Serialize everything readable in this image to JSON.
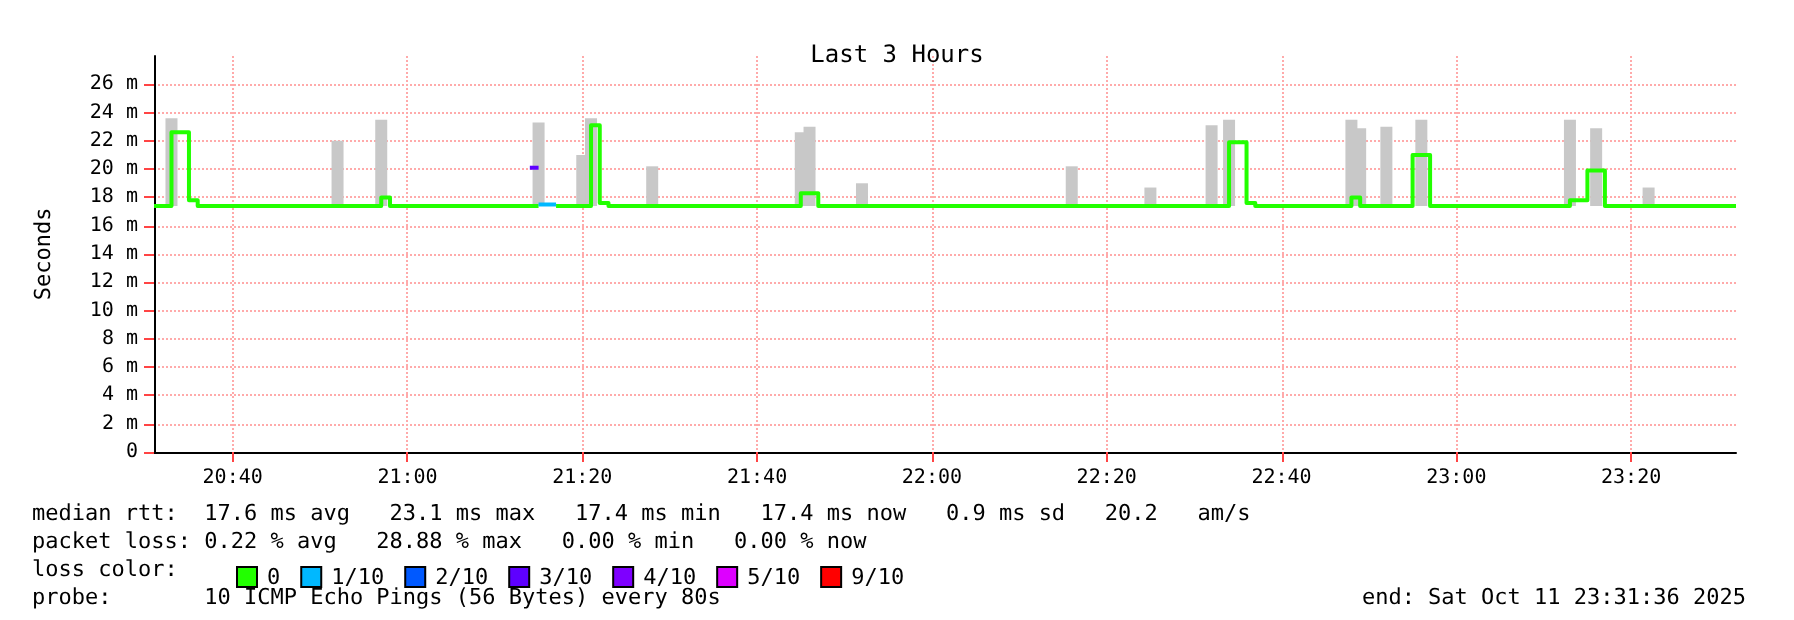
{
  "chart_data": {
    "type": "step",
    "title": "Last 3 Hours",
    "ylabel": "Seconds",
    "legend_title": "loss color:",
    "legend": "bottom left",
    "grid": true,
    "xlim": [
      "2025-10-11T20:31",
      "2025-10-11T23:32"
    ],
    "xticks": [
      {
        "value": "2025-10-11T20:40",
        "label": "20:40"
      },
      {
        "value": "2025-10-11T21:00",
        "label": "21:00"
      },
      {
        "value": "2025-10-11T21:20",
        "label": "21:20"
      },
      {
        "value": "2025-10-11T21:40",
        "label": "21:40"
      },
      {
        "value": "2025-10-11T22:00",
        "label": "22:00"
      },
      {
        "value": "2025-10-11T22:20",
        "label": "22:20"
      },
      {
        "value": "2025-10-11T22:40",
        "label": "22:40"
      },
      {
        "value": "2025-10-11T23:00",
        "label": "23:00"
      },
      {
        "value": "2025-10-11T23:20",
        "label": "23:20"
      }
    ],
    "ylim": [
      0,
      28
    ],
    "yticks": [
      0,
      {
        "value": 2,
        "label": "2 m"
      },
      {
        "value": 4,
        "label": "4 m"
      },
      {
        "value": 6,
        "label": "6 m"
      },
      {
        "value": 8,
        "label": "8 m"
      },
      {
        "value": 10,
        "label": "10 m"
      },
      {
        "value": 12,
        "label": "12 m"
      },
      {
        "value": 14,
        "label": "14 m"
      },
      {
        "value": 16,
        "label": "16 m"
      },
      {
        "value": 18,
        "label": "18 m"
      },
      {
        "value": 20,
        "label": "20 m"
      },
      {
        "value": 22,
        "label": "22 m"
      },
      {
        "value": 24,
        "label": "24 m"
      },
      {
        "value": 26,
        "label": "26 m"
      }
    ],
    "series": [
      {
        "type": "bar",
        "color": "#c8c8c8",
        "x": [
          "2025-10-11T20:33",
          "2025-10-11T20:52",
          "2025-10-11T20:57",
          "2025-10-11T21:15",
          "2025-10-11T21:20",
          "2025-10-11T21:21",
          "2025-10-11T21:28",
          "2025-10-11T21:45",
          "2025-10-11T21:46",
          "2025-10-11T21:52",
          "2025-10-11T22:16",
          "2025-10-11T22:25",
          "2025-10-11T22:32",
          "2025-10-11T22:34",
          "2025-10-11T22:48",
          "2025-10-11T22:49",
          "2025-10-11T22:52",
          "2025-10-11T22:56",
          "2025-10-11T23:13",
          "2025-10-11T23:16",
          "2025-10-11T23:22"
        ],
        "base": [
          17.4,
          17.4,
          17.4,
          17.4,
          17.4,
          17.4,
          17.4,
          17.4,
          17.4,
          17.4,
          17.4,
          17.4,
          17.4,
          17.4,
          17.4,
          17.4,
          17.4,
          17.4,
          17.4,
          17.4,
          17.4
        ],
        "values": [
          6.2,
          4.6,
          6.1,
          5.9,
          3.6,
          6.2,
          2.8,
          5.2,
          5.6,
          1.6,
          2.8,
          1.3,
          5.7,
          6.1,
          6.1,
          5.5,
          5.6,
          6.1,
          6.1,
          5.5,
          1.3
        ]
      },
      {
        "name": "0",
        "color": "#22ff00",
        "x": [
          "2025-10-11T20:31",
          "2025-10-11T20:33",
          "2025-10-11T20:35",
          "2025-10-11T20:36",
          "2025-10-11T20:57",
          "2025-10-11T20:58",
          "2025-10-11T21:14",
          "2025-10-11T21:15",
          "2025-10-11T21:17",
          "2025-10-11T21:21",
          "2025-10-11T21:22",
          "2025-10-11T21:23",
          "2025-10-11T21:45",
          "2025-10-11T21:47",
          "2025-10-11T22:34",
          "2025-10-11T22:36",
          "2025-10-11T22:37",
          "2025-10-11T22:48",
          "2025-10-11T22:49",
          "2025-10-11T22:55",
          "2025-10-11T22:57",
          "2025-10-11T23:13",
          "2025-10-11T23:15",
          "2025-10-11T23:17",
          "2025-10-11T23:32"
        ],
        "values": [
          17.4,
          22.6,
          17.8,
          17.4,
          18.0,
          17.4,
          17.4,
          null,
          17.4,
          23.1,
          17.6,
          17.4,
          18.3,
          17.4,
          21.9,
          17.6,
          17.4,
          18.0,
          17.4,
          21.0,
          17.4,
          17.8,
          19.9,
          17.4,
          17.4
        ]
      },
      {
        "name": "1/10",
        "color": "#00b8ff",
        "x": [
          "2025-10-11T21:15",
          "2025-10-11T21:17"
        ],
        "values": [
          17.5,
          17.5
        ]
      },
      {
        "name": "2/10",
        "color": "#0059ff"
      },
      {
        "name": "3/10",
        "color": "#5e00ff",
        "x": [
          "2025-10-11T21:14",
          "2025-10-11T21:15"
        ],
        "values": [
          20.1,
          20.1
        ]
      },
      {
        "name": "4/10",
        "color": "#7e00ff"
      },
      {
        "name": "5/10",
        "color": "#dd00ff"
      },
      {
        "name": "9/10",
        "color": "#ff0000"
      }
    ],
    "annotations": [
      "median rtt:  17.6 ms avg   23.1 ms max   17.4 ms min   17.4 ms now   0.9 ms sd   20.2   am/s",
      "packet loss: 0.22 % avg   28.88 % max   0.00 % min   0.00 % now",
      "probe:       10 ICMP Echo Pings (56 Bytes) every 80s",
      "end: Sat Oct 11 23:31:36 2025"
    ]
  }
}
